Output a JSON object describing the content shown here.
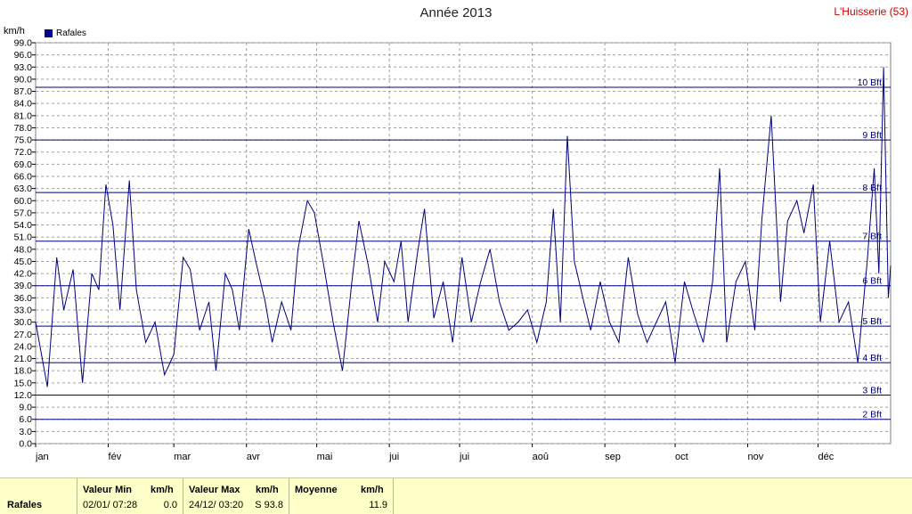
{
  "title": "Année 2013",
  "station": "L'Huisserie (53)",
  "unit_label": "km/h",
  "legend_label": "Rafales",
  "chart_data": {
    "type": "line",
    "title": "Année 2013",
    "ylabel": "km/h",
    "ylim": [
      0,
      99
    ],
    "yticks": [
      "0.0",
      "3.0",
      "6.0",
      "9.0",
      "12.0",
      "15.0",
      "18.0",
      "21.0",
      "24.0",
      "27.0",
      "30.0",
      "33.0",
      "36.0",
      "39.0",
      "42.0",
      "45.0",
      "48.0",
      "51.0",
      "54.0",
      "57.0",
      "60.0",
      "63.0",
      "66.0",
      "69.0",
      "72.0",
      "75.0",
      "78.0",
      "81.0",
      "84.0",
      "87.0",
      "90.0",
      "93.0",
      "96.0",
      "99.0"
    ],
    "xlabels": [
      "jan",
      "fév",
      "mar",
      "avr",
      "mai",
      "jui",
      "jui",
      "aoû",
      "sep",
      "oct",
      "nov",
      "déc"
    ],
    "xlim": [
      0,
      365
    ],
    "beaufort": [
      {
        "label": "2 Bft",
        "value": 6
      },
      {
        "label": "3 Bft",
        "value": 12
      },
      {
        "label": "4 Bft",
        "value": 20
      },
      {
        "label": "5 Bft",
        "value": 29
      },
      {
        "label": "6 Bft",
        "value": 39
      },
      {
        "label": "7 Bft",
        "value": 50
      },
      {
        "label": "8 Bft",
        "value": 62
      },
      {
        "label": "9 Bft",
        "value": 75
      },
      {
        "label": "10 Bft",
        "value": 88
      }
    ],
    "series": [
      {
        "name": "Rafales",
        "color": "#000080",
        "max_points": [
          [
            0,
            30
          ],
          [
            5,
            14
          ],
          [
            9,
            46
          ],
          [
            12,
            33
          ],
          [
            16,
            43
          ],
          [
            20,
            15
          ],
          [
            24,
            42
          ],
          [
            27,
            38
          ],
          [
            30,
            64
          ],
          [
            33,
            54
          ],
          [
            36,
            33
          ],
          [
            40,
            65
          ],
          [
            43,
            38
          ],
          [
            47,
            25
          ],
          [
            51,
            30
          ],
          [
            55,
            17
          ],
          [
            59,
            22
          ],
          [
            63,
            46
          ],
          [
            66,
            43
          ],
          [
            70,
            28
          ],
          [
            74,
            35
          ],
          [
            77,
            18
          ],
          [
            81,
            42
          ],
          [
            84,
            38
          ],
          [
            87,
            28
          ],
          [
            91,
            53
          ],
          [
            94,
            45
          ],
          [
            98,
            35
          ],
          [
            101,
            25
          ],
          [
            105,
            35
          ],
          [
            109,
            28
          ],
          [
            112,
            48
          ],
          [
            116,
            60
          ],
          [
            119,
            57
          ],
          [
            123,
            44
          ],
          [
            127,
            30
          ],
          [
            131,
            18
          ],
          [
            135,
            40
          ],
          [
            138,
            55
          ],
          [
            142,
            44
          ],
          [
            146,
            30
          ],
          [
            149,
            45
          ],
          [
            153,
            40
          ],
          [
            156,
            50
          ],
          [
            159,
            30
          ],
          [
            163,
            47
          ],
          [
            166,
            58
          ],
          [
            170,
            31
          ],
          [
            174,
            40
          ],
          [
            178,
            25
          ],
          [
            182,
            46
          ],
          [
            186,
            30
          ],
          [
            190,
            40
          ],
          [
            194,
            48
          ],
          [
            198,
            35
          ],
          [
            202,
            28
          ],
          [
            206,
            30
          ],
          [
            210,
            33
          ],
          [
            214,
            25
          ],
          [
            218,
            35
          ],
          [
            221,
            58
          ],
          [
            224,
            30
          ],
          [
            227,
            76
          ],
          [
            230,
            45
          ],
          [
            234,
            35
          ],
          [
            237,
            28
          ],
          [
            241,
            40
          ],
          [
            245,
            30
          ],
          [
            249,
            25
          ],
          [
            253,
            46
          ],
          [
            257,
            32
          ],
          [
            261,
            25
          ],
          [
            265,
            30
          ],
          [
            269,
            35
          ],
          [
            273,
            20
          ],
          [
            277,
            40
          ],
          [
            281,
            32
          ],
          [
            285,
            25
          ],
          [
            289,
            40
          ],
          [
            292,
            68
          ],
          [
            295,
            25
          ],
          [
            299,
            40
          ],
          [
            303,
            45
          ],
          [
            307,
            28
          ],
          [
            310,
            55
          ],
          [
            314,
            81
          ],
          [
            318,
            35
          ],
          [
            321,
            55
          ],
          [
            325,
            60
          ],
          [
            328,
            52
          ],
          [
            332,
            64
          ],
          [
            335,
            30
          ],
          [
            339,
            50
          ],
          [
            343,
            30
          ],
          [
            347,
            35
          ],
          [
            351,
            20
          ],
          [
            355,
            45
          ],
          [
            358,
            68
          ],
          [
            360,
            42
          ],
          [
            362,
            93
          ],
          [
            364,
            36
          ],
          [
            365,
            44
          ]
        ],
        "daily_max_kmh": 93.8
      }
    ]
  },
  "summary": {
    "series_label": "Rafales",
    "min_header": "Valeur Min",
    "min_unit": "km/h",
    "min_date": "02/01/ 07:28",
    "min_value": "0.0",
    "max_header": "Valeur Max",
    "max_unit": "km/h",
    "max_date": "24/12/ 03:20",
    "max_value": "S 93.8",
    "avg_header": "Moyenne",
    "avg_unit": "km/h",
    "avg_value": "11.9"
  }
}
